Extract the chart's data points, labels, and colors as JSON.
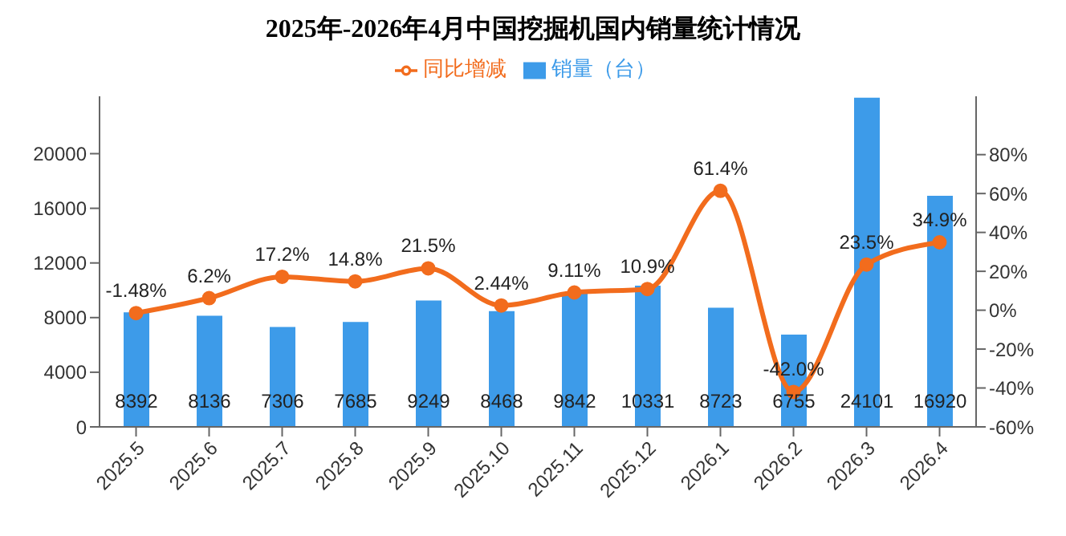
{
  "chart_data": {
    "type": "bar",
    "title": "2025年-2026年4月中国挖掘机国内销量统计情况",
    "categories": [
      "2025.5",
      "2025.6",
      "2025.7",
      "2025.8",
      "2025.9",
      "2025.10",
      "2025.11",
      "2025.12",
      "2026.1",
      "2026.2",
      "2026.3",
      "2026.4"
    ],
    "series": [
      {
        "name": "销量（台）",
        "color": "#3d9be9",
        "values": [
          8392,
          8136,
          7306,
          7685,
          9249,
          8468,
          9842,
          10331,
          8723,
          6755,
          24101,
          16920
        ]
      },
      {
        "name": "同比增减",
        "type": "line",
        "axis": "y2",
        "color": "#f26c1d",
        "values": [
          -1.48,
          6.2,
          17.2,
          14.8,
          21.5,
          2.44,
          9.11,
          10.9,
          61.4,
          -42.0,
          23.5,
          34.9
        ],
        "value_labels": [
          "-1.48%",
          "6.2%",
          "17.2%",
          "14.8%",
          "21.5%",
          "2.44%",
          "9.11%",
          "10.9%",
          "61.4%",
          "-42.0%",
          "23.5%",
          "34.9%"
        ]
      }
    ],
    "data_labels": true,
    "ylim": [
      0,
      24200
    ],
    "yticks": [
      0,
      4000,
      8000,
      12000,
      16000,
      20000
    ],
    "y2lim": [
      -60,
      110
    ],
    "y2ticks": [
      {
        "value": -60,
        "label": "-60%"
      },
      {
        "value": -40,
        "label": "-40%"
      },
      {
        "value": -20,
        "label": "-20%"
      },
      {
        "value": 0,
        "label": "0%"
      },
      {
        "value": 20,
        "label": "20%"
      },
      {
        "value": 40,
        "label": "40%"
      },
      {
        "value": 60,
        "label": "60%"
      },
      {
        "value": 80,
        "label": "80%"
      }
    ],
    "legend": "top",
    "marker": "circle",
    "grid": false
  }
}
